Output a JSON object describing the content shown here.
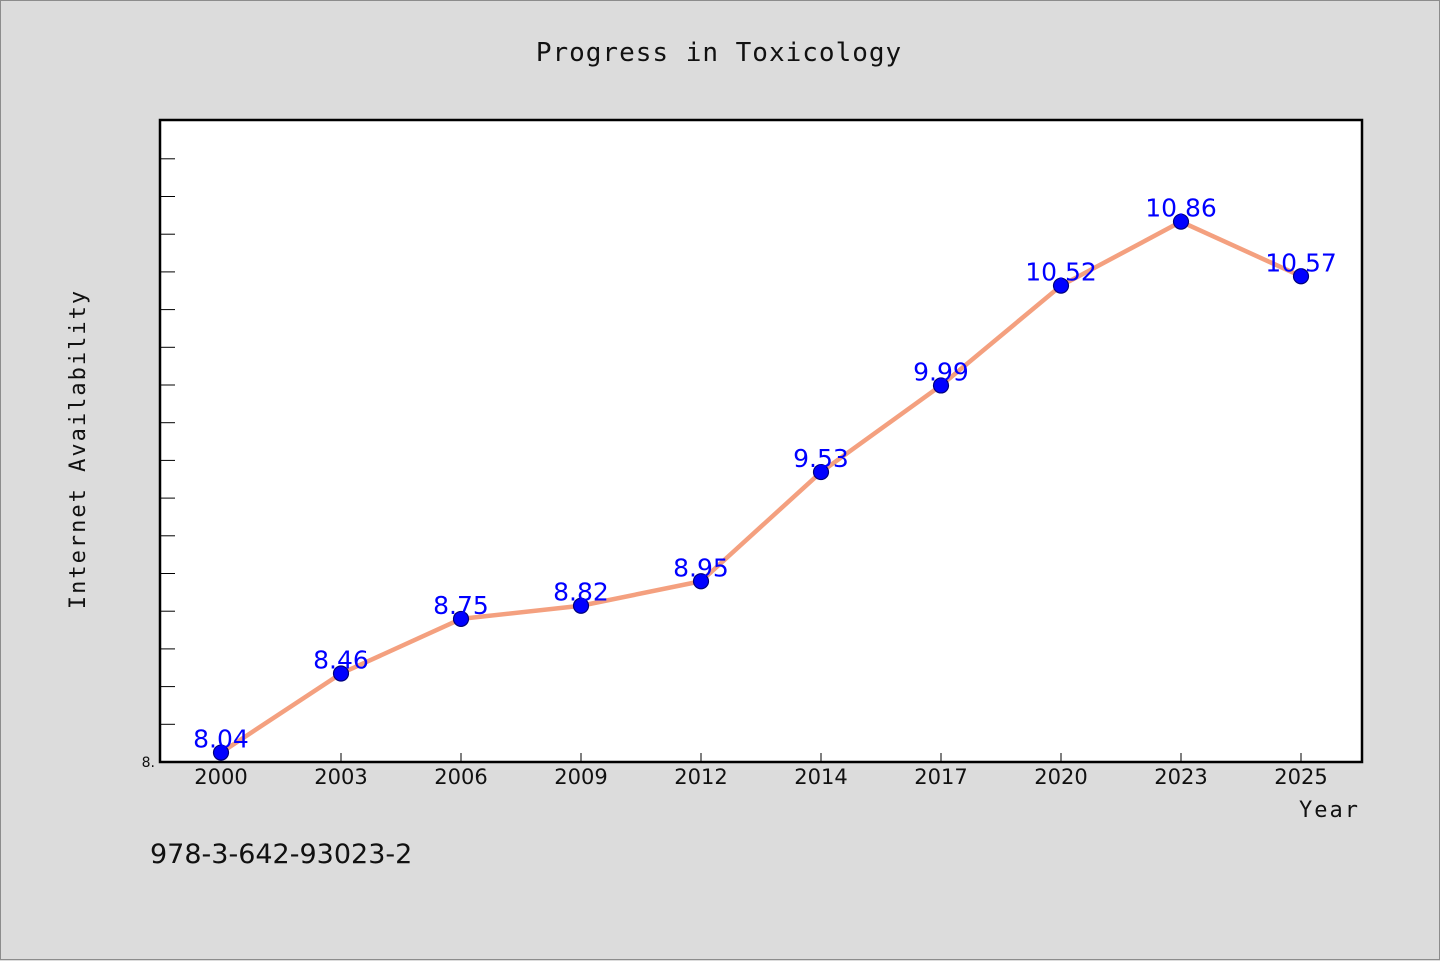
{
  "chart_data": {
    "type": "line",
    "title": "Progress in Toxicology",
    "xlabel": "Year",
    "ylabel": "Internet Availability",
    "categories": [
      "2000",
      "2003",
      "2006",
      "2009",
      "2012",
      "2014",
      "2017",
      "2020",
      "2023",
      "2025"
    ],
    "values": [
      8.04,
      8.46,
      8.75,
      8.82,
      8.95,
      9.53,
      9.99,
      10.52,
      10.86,
      10.57
    ],
    "data_labels": [
      "8.04",
      "8.46",
      "8.75",
      "8.82",
      "8.95",
      "9.53",
      "9.99",
      "10.52",
      "10.86",
      "10.57"
    ],
    "y_tick_labels": [
      "8."
    ],
    "ylim": [
      7.99,
      11.4
    ],
    "grid": false,
    "legend": "none",
    "colors": {
      "line": "#f4a07f",
      "marker": "#0000ff",
      "data_label": "#0000ff",
      "plot_background": "#ffffff",
      "page_background": "#dcdcdc"
    }
  },
  "footer": {
    "isbn": "978-3-642-93023-2"
  }
}
